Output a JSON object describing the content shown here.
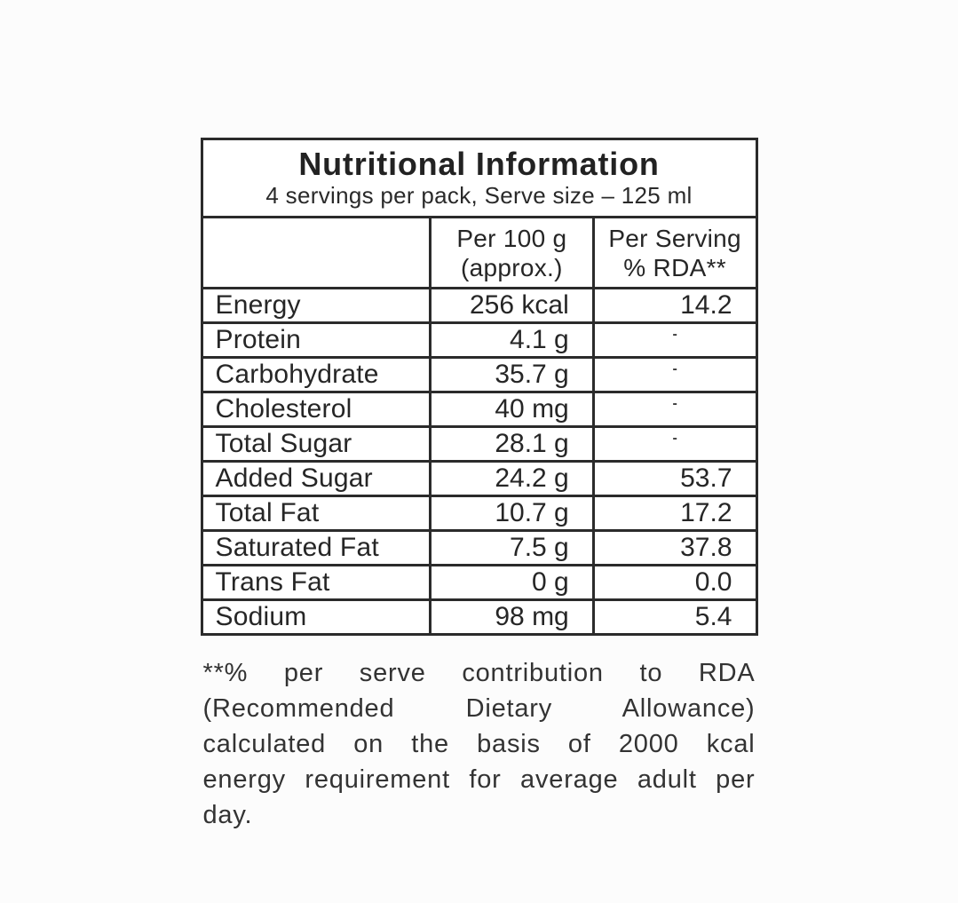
{
  "label": {
    "title": "Nutritional Information",
    "subtitle": "4 servings per pack, Serve size – 125 ml",
    "columns": {
      "nutrient": "",
      "per_100g_line1": "Per 100 g",
      "per_100g_line2": "(approx.)",
      "per_serving_line1": "Per Serving",
      "per_serving_line2": "% RDA**"
    },
    "rows": [
      {
        "nutrient": "Energy",
        "per_100g": "256 kcal",
        "per_serving_rda": "14.2"
      },
      {
        "nutrient": "Protein",
        "per_100g": "4.1 g",
        "per_serving_rda": "-"
      },
      {
        "nutrient": "Carbohydrate",
        "per_100g": "35.7 g",
        "per_serving_rda": "-"
      },
      {
        "nutrient": "Cholesterol",
        "per_100g": "40 mg",
        "per_serving_rda": "-"
      },
      {
        "nutrient": "Total Sugar",
        "per_100g": "28.1 g",
        "per_serving_rda": "-"
      },
      {
        "nutrient": "Added Sugar",
        "per_100g": "24.2 g",
        "per_serving_rda": "53.7"
      },
      {
        "nutrient": "Total Fat",
        "per_100g": "10.7 g",
        "per_serving_rda": "17.2"
      },
      {
        "nutrient": "Saturated Fat",
        "per_100g": "7.5 g",
        "per_serving_rda": "37.8"
      },
      {
        "nutrient": "Trans Fat",
        "per_100g": "0 g",
        "per_serving_rda": "0.0"
      },
      {
        "nutrient": "Sodium",
        "per_100g": "98 mg",
        "per_serving_rda": "5.4"
      }
    ],
    "footnote_lines": [
      "**% per serve contribution to RDA",
      "(Recommended Dietary Allowance)",
      "calculated on the basis of 2000 kcal",
      "energy requirement for average adult per",
      "day."
    ],
    "colors": {
      "border": "#2b2b2b",
      "text": "#262626",
      "background": "#fcfcfc"
    }
  }
}
